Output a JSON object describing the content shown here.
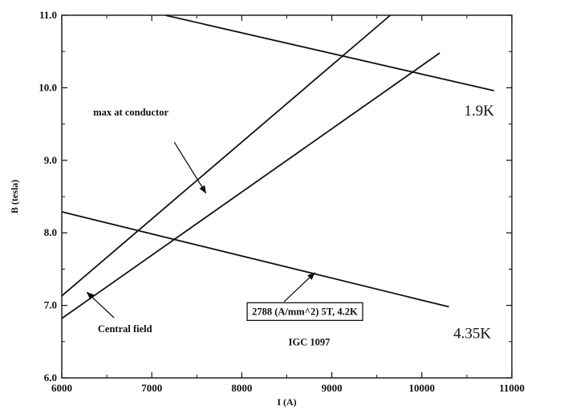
{
  "chart_data": {
    "type": "line",
    "xlabel": "I (A)",
    "ylabel": "B (tesla)",
    "xlim": [
      6000,
      11000
    ],
    "ylim": [
      6.0,
      11.0
    ],
    "x_ticks": [
      "6000",
      "7000",
      "8000",
      "9000",
      "10000",
      "11000"
    ],
    "y_ticks": [
      "6.0",
      "7.0",
      "8.0",
      "9.0",
      "10.0",
      "11.0"
    ],
    "grid": false,
    "series": [
      {
        "x": [
          7150,
          10800
        ],
        "y": [
          11.0,
          9.96
        ]
      },
      {
        "x": [
          6000,
          10300
        ],
        "y": [
          8.29,
          6.98
        ]
      },
      {
        "x": [
          6000,
          9650
        ],
        "y": [
          7.13,
          11.0
        ]
      },
      {
        "x": [
          6000,
          10200
        ],
        "y": [
          6.82,
          10.48
        ]
      }
    ],
    "annotations": [
      {
        "text": "max at conductor",
        "x": 6350,
        "y": 9.62,
        "arrow_from": [
          7250,
          9.25
        ],
        "arrow_to": [
          7600,
          8.55
        ]
      },
      {
        "text": "Central field",
        "x": 6400,
        "y": 6.63,
        "arrow_from": [
          6580,
          6.83
        ],
        "arrow_to": [
          6280,
          7.18
        ]
      },
      {
        "text": "2788 (A/mm^2) 5T, 4.2K",
        "x": 8700,
        "y": 6.87,
        "boxed": true,
        "arrow_from": [
          8470,
          7.05
        ],
        "arrow_to": [
          8810,
          7.45
        ]
      },
      {
        "text": "IGC 1097",
        "x": 8750,
        "y": 6.45
      },
      {
        "text": "1.9K",
        "x": 10470,
        "y": 9.62,
        "large": true
      },
      {
        "text": "4.35K",
        "x": 10350,
        "y": 6.55,
        "large": true
      }
    ]
  }
}
